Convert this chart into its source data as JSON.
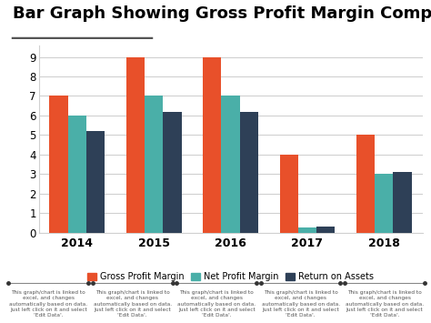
{
  "title": "Bar Graph Showing Gross Profit Margin Comparison",
  "title_fontsize": 13,
  "categories": [
    "2014",
    "2015",
    "2016",
    "2017",
    "2018"
  ],
  "gross_profit_margin": [
    7,
    9,
    9,
    4,
    5
  ],
  "net_profit_margin": [
    6,
    7,
    7,
    0.25,
    3
  ],
  "return_on_assets": [
    5.2,
    6.2,
    6.2,
    0.3,
    3.1
  ],
  "color_gross": "#E8502A",
  "color_net": "#4AAFA8",
  "color_roa": "#2E4057",
  "legend_labels": [
    "Gross Profit Margin",
    "Net Profit Margin",
    "Return on Assets"
  ],
  "ylim": [
    0,
    9.6
  ],
  "yticks": [
    0,
    1,
    2,
    3,
    4,
    5,
    6,
    7,
    8,
    9
  ],
  "background_color": "#ffffff",
  "plot_bg_color": "#ffffff",
  "bar_width": 0.24,
  "footnote_text": "This graph/chart is linked to\nexcel, and changes\nautomatically based on data.\nJust left click on it and select\n'Edit Data'.",
  "title_underline_color": "#555555",
  "grid_color": "#d0d0d0"
}
